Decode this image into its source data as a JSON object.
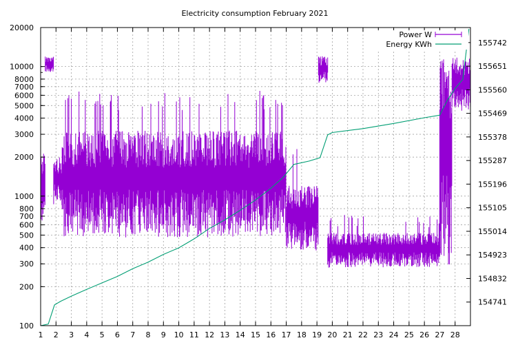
{
  "chart_data": {
    "type": "line",
    "title": "Electricity consumption February 2021",
    "xlabel": "",
    "ylabel": "",
    "y2label": "",
    "x_ticks": [
      "1",
      "2",
      "3",
      "4",
      "5",
      "6",
      "7",
      "8",
      "9",
      "10",
      "11",
      "12",
      "13",
      "14",
      "15",
      "16",
      "17",
      "18",
      "19",
      "20",
      "21",
      "22",
      "23",
      "24",
      "25",
      "26",
      "27",
      "28"
    ],
    "xlim": [
      1,
      29
    ],
    "y_scale": "log",
    "ylim": [
      100,
      20000
    ],
    "y_ticks": [
      100,
      200,
      300,
      400,
      500,
      600,
      700,
      800,
      1000,
      2000,
      3000,
      4000,
      5000,
      6000,
      7000,
      8000,
      10000,
      20000
    ],
    "y2lim": [
      154650,
      155800
    ],
    "y2_ticks": [
      154741,
      154832,
      154923,
      155014,
      155105,
      155196,
      155287,
      155378,
      155469,
      155560,
      155651,
      155742
    ],
    "grid": true,
    "legend_position": "top-right",
    "series": [
      {
        "name": "Power W",
        "axis": "y",
        "color": "#9400d3",
        "style": "impulses",
        "segments": [
          {
            "x": [
              1.0,
              1.3
            ],
            "low": 620,
            "high": 2200
          },
          {
            "x": [
              1.3,
              1.85
            ],
            "low": 9000,
            "high": 12000
          },
          {
            "x": [
              1.85,
              2.4
            ],
            "low": 850,
            "high": 2000
          },
          {
            "x": [
              2.4,
              17.0
            ],
            "low": 480,
            "high": 3200,
            "daily_peak": 6500
          },
          {
            "x": [
              17.0,
              19.1
            ],
            "low": 380,
            "high": 1200,
            "daily_peak": 2600
          },
          {
            "x": [
              19.1,
              19.7
            ],
            "low": 7500,
            "high": 12000
          },
          {
            "x": [
              19.7,
              27.0
            ],
            "low": 280,
            "high": 520,
            "daily_peak": 720
          },
          {
            "x": [
              27.0,
              27.8
            ],
            "low": 280,
            "high": 12000
          },
          {
            "x": [
              27.8,
              29.0
            ],
            "low": 4500,
            "high": 12000
          }
        ]
      },
      {
        "name": "Energy KWh",
        "axis": "y2",
        "color": "#009e73",
        "style": "line",
        "x": [
          1.0,
          1.5,
          1.9,
          2.3,
          3.0,
          4.0,
          5.0,
          6.0,
          7.0,
          8.0,
          9.0,
          10.0,
          11.0,
          12.0,
          13.0,
          14.0,
          15.0,
          16.0,
          16.8,
          17.5,
          18.5,
          19.2,
          19.7,
          20.0,
          22.0,
          24.0,
          26.0,
          27.0,
          27.5,
          28.0,
          28.5,
          28.9
        ],
        "values": [
          154650,
          154656,
          154730,
          154744,
          154764,
          154790,
          154815,
          154840,
          154870,
          154895,
          154925,
          154950,
          154985,
          155025,
          155058,
          155095,
          155135,
          155180,
          155222,
          155272,
          155285,
          155298,
          155386,
          155395,
          155410,
          155430,
          155452,
          155462,
          155520,
          155565,
          155600,
          155795
        ]
      }
    ]
  }
}
